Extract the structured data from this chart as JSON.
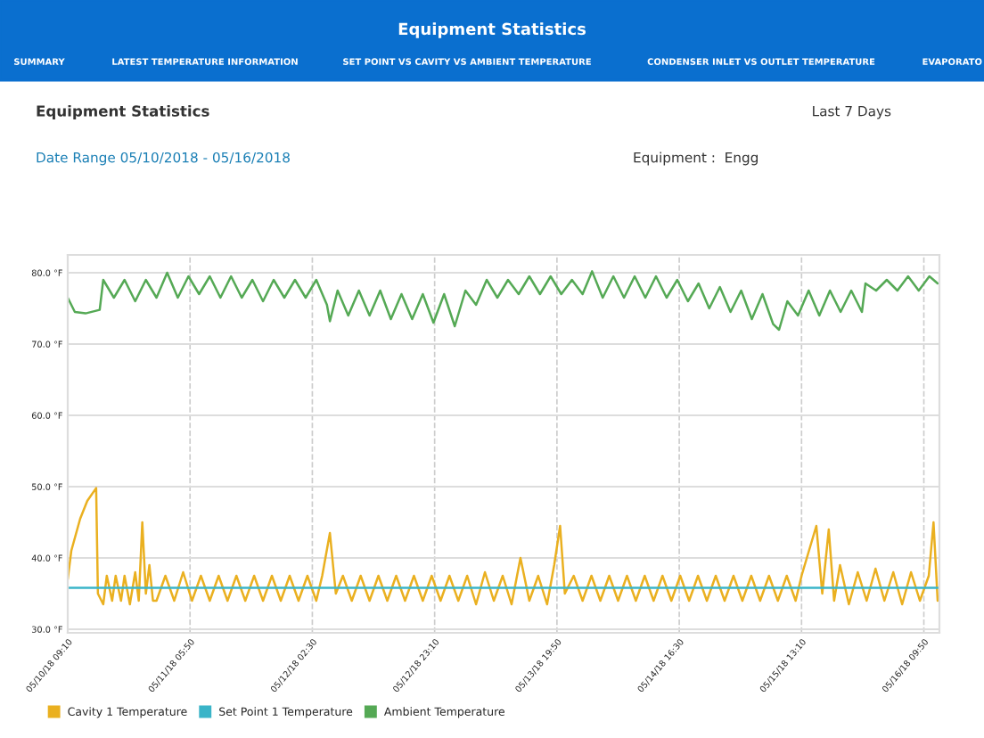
{
  "chart_data": {
    "type": "line",
    "title": "Equipment Statistics",
    "subtitle": "Date Range 05/10/2018 - 05/16/2018",
    "annotations": [
      "SUMMARY",
      "LATEST TEMPERATURE INFORMATION",
      "SET POINT VS CAVITY VS AMBIENT TEMPERATURE",
      "CONDENSER INLET VS OUTLET TEMPERATURE",
      "EVAPORATO",
      "Equipment Statistics",
      "Last 7 Days",
      "Equipment :  Engg"
    ],
    "xlim": [
      "2018-05-10T09:10",
      "2018-05-16T12:28"
    ],
    "ylim": [
      29.5,
      82.5
    ],
    "xticks": [
      {
        "value": "2018-05-10T09:10",
        "label": "05/10/18 09:10"
      },
      {
        "value": "2018-05-11T05:50",
        "label": "05/11/18 05:50"
      },
      {
        "value": "2018-05-12T02:30",
        "label": "05/12/18 02:30"
      },
      {
        "value": "2018-05-12T23:10",
        "label": "05/12/18 23:10"
      },
      {
        "value": "2018-05-13T19:50",
        "label": "05/13/18 19:50"
      },
      {
        "value": "2018-05-14T16:30",
        "label": "05/14/18 16:30"
      },
      {
        "value": "2018-05-15T13:10",
        "label": "05/15/18 13:10"
      },
      {
        "value": "2018-05-16T09:50",
        "label": "05/16/18 09:50"
      }
    ],
    "yticks": [
      {
        "value": 30,
        "label": "30.0 °F"
      },
      {
        "value": 40,
        "label": "40.0 °F"
      },
      {
        "value": 50,
        "label": "50.0 °F"
      },
      {
        "value": 60,
        "label": "60.0 °F"
      },
      {
        "value": 70,
        "label": "70.0 °F"
      },
      {
        "value": 80,
        "label": "80.0 °F"
      }
    ],
    "grid": true,
    "legend": "bottom left",
    "marker": "none",
    "series": [
      {
        "name": "Cavity 1 Temperature",
        "color": "#eab020",
        "x": [
          "2018-05-10T09:10",
          "2018-05-10T09:46",
          "2018-05-10T11:16",
          "2018-05-10T12:28",
          "2018-05-10T13:58",
          "2018-05-10T14:16",
          "2018-05-10T15:10",
          "2018-05-10T15:46",
          "2018-05-10T16:40",
          "2018-05-10T17:16",
          "2018-05-10T18:10",
          "2018-05-10T18:46",
          "2018-05-10T19:40",
          "2018-05-10T20:34",
          "2018-05-10T21:10",
          "2018-05-10T21:46",
          "2018-05-10T22:22",
          "2018-05-10T22:58",
          "2018-05-10T23:34",
          "2018-05-11T00:10",
          "2018-05-11T01:40",
          "2018-05-11T03:10",
          "2018-05-11T04:40",
          "2018-05-11T06:10",
          "2018-05-11T07:40",
          "2018-05-11T09:10",
          "2018-05-11T10:40",
          "2018-05-11T12:10",
          "2018-05-11T13:40",
          "2018-05-11T15:10",
          "2018-05-11T16:40",
          "2018-05-11T18:10",
          "2018-05-11T19:40",
          "2018-05-11T21:10",
          "2018-05-11T22:40",
          "2018-05-12T00:10",
          "2018-05-12T01:40",
          "2018-05-12T03:10",
          "2018-05-12T04:10",
          "2018-05-12T05:28",
          "2018-05-12T06:28",
          "2018-05-12T07:40",
          "2018-05-12T09:10",
          "2018-05-12T10:40",
          "2018-05-12T12:10",
          "2018-05-12T13:40",
          "2018-05-12T15:10",
          "2018-05-12T16:40",
          "2018-05-12T18:10",
          "2018-05-12T19:40",
          "2018-05-12T21:10",
          "2018-05-12T22:40",
          "2018-05-13T00:10",
          "2018-05-13T01:40",
          "2018-05-13T03:10",
          "2018-05-13T04:40",
          "2018-05-13T06:10",
          "2018-05-13T07:40",
          "2018-05-13T09:10",
          "2018-05-13T10:40",
          "2018-05-13T12:10",
          "2018-05-13T13:40",
          "2018-05-13T15:10",
          "2018-05-13T16:40",
          "2018-05-13T18:10",
          "2018-05-13T19:22",
          "2018-05-13T20:22",
          "2018-05-13T21:10",
          "2018-05-13T22:40",
          "2018-05-14T00:10",
          "2018-05-14T01:40",
          "2018-05-14T03:10",
          "2018-05-14T04:40",
          "2018-05-14T06:10",
          "2018-05-14T07:40",
          "2018-05-14T09:10",
          "2018-05-14T10:40",
          "2018-05-14T12:10",
          "2018-05-14T13:40",
          "2018-05-14T15:10",
          "2018-05-14T16:40",
          "2018-05-14T18:10",
          "2018-05-14T19:40",
          "2018-05-14T21:10",
          "2018-05-14T22:40",
          "2018-05-15T00:10",
          "2018-05-15T01:40",
          "2018-05-15T03:10",
          "2018-05-15T04:40",
          "2018-05-15T06:10",
          "2018-05-15T07:40",
          "2018-05-15T09:10",
          "2018-05-15T10:40",
          "2018-05-15T12:10",
          "2018-05-15T13:10",
          "2018-05-15T15:40",
          "2018-05-15T16:40",
          "2018-05-15T17:46",
          "2018-05-15T18:40",
          "2018-05-15T19:40",
          "2018-05-15T21:10",
          "2018-05-15T22:40",
          "2018-05-16T00:10",
          "2018-05-16T01:40",
          "2018-05-16T03:10",
          "2018-05-16T04:40",
          "2018-05-16T06:10",
          "2018-05-16T07:40",
          "2018-05-16T09:10",
          "2018-05-16T10:40",
          "2018-05-16T11:28",
          "2018-05-16T12:10"
        ],
        "values": [
          37,
          41,
          45.5,
          48,
          49.8,
          35,
          33.5,
          37.5,
          34,
          37.5,
          34,
          37.5,
          33.5,
          38,
          34,
          45,
          35,
          39,
          34,
          34,
          37.5,
          34,
          38,
          34,
          37.5,
          34,
          37.5,
          34,
          37.5,
          34,
          37.5,
          34,
          37.5,
          34,
          37.5,
          34,
          37.5,
          34,
          37.5,
          43.5,
          35,
          37.5,
          34,
          37.5,
          34,
          37.5,
          34,
          37.5,
          34,
          37.5,
          34,
          37.5,
          34,
          37.5,
          34,
          37.5,
          33.5,
          38,
          34,
          37.5,
          33.5,
          40,
          34,
          37.5,
          33.5,
          39,
          44.5,
          35,
          37.5,
          34,
          37.5,
          34,
          37.5,
          34,
          37.5,
          34,
          37.5,
          34,
          37.5,
          34,
          37.5,
          34,
          37.5,
          34,
          37.5,
          34,
          37.5,
          34,
          37.5,
          34,
          37.5,
          34,
          37.5,
          34,
          37.5,
          44.5,
          35,
          44,
          34,
          39,
          33.5,
          38,
          34,
          38.5,
          34,
          38,
          33.5,
          38,
          34,
          37.5,
          45,
          34
        ]
      },
      {
        "name": "Set Point 1 Temperature",
        "color": "#3ab4c8",
        "x": [
          "2018-05-10T09:10",
          "2018-05-16T12:10"
        ],
        "values": [
          35.8,
          35.8
        ]
      },
      {
        "name": "Ambient Temperature",
        "color": "#55a955",
        "x": [
          "2018-05-10T09:10",
          "2018-05-10T10:22",
          "2018-05-10T12:10",
          "2018-05-10T14:34",
          "2018-05-10T15:10",
          "2018-05-10T16:58",
          "2018-05-10T18:46",
          "2018-05-10T20:34",
          "2018-05-10T22:22",
          "2018-05-11T00:10",
          "2018-05-11T01:58",
          "2018-05-11T03:46",
          "2018-05-11T05:34",
          "2018-05-11T07:22",
          "2018-05-11T09:10",
          "2018-05-11T10:58",
          "2018-05-11T12:46",
          "2018-05-11T14:34",
          "2018-05-11T16:22",
          "2018-05-11T18:10",
          "2018-05-11T19:58",
          "2018-05-11T21:46",
          "2018-05-11T23:34",
          "2018-05-12T01:22",
          "2018-05-12T03:10",
          "2018-05-12T04:58",
          "2018-05-12T05:28",
          "2018-05-12T06:46",
          "2018-05-12T08:34",
          "2018-05-12T10:22",
          "2018-05-12T12:10",
          "2018-05-12T13:58",
          "2018-05-12T15:46",
          "2018-05-12T17:34",
          "2018-05-12T19:22",
          "2018-05-12T21:10",
          "2018-05-12T22:58",
          "2018-05-13T00:46",
          "2018-05-13T02:34",
          "2018-05-13T04:22",
          "2018-05-13T06:10",
          "2018-05-13T07:58",
          "2018-05-13T09:46",
          "2018-05-13T11:34",
          "2018-05-13T13:22",
          "2018-05-13T15:10",
          "2018-05-13T16:58",
          "2018-05-13T18:46",
          "2018-05-13T20:34",
          "2018-05-13T22:22",
          "2018-05-14T00:10",
          "2018-05-14T01:46",
          "2018-05-14T03:34",
          "2018-05-14T05:22",
          "2018-05-14T07:10",
          "2018-05-14T08:58",
          "2018-05-14T10:46",
          "2018-05-14T12:34",
          "2018-05-14T14:22",
          "2018-05-14T16:10",
          "2018-05-14T17:58",
          "2018-05-14T19:46",
          "2018-05-14T21:34",
          "2018-05-14T23:22",
          "2018-05-15T01:10",
          "2018-05-15T02:58",
          "2018-05-15T04:46",
          "2018-05-15T06:34",
          "2018-05-15T08:22",
          "2018-05-15T09:22",
          "2018-05-15T10:46",
          "2018-05-15T12:34",
          "2018-05-15T14:22",
          "2018-05-15T16:10",
          "2018-05-15T17:58",
          "2018-05-15T19:46",
          "2018-05-15T21:34",
          "2018-05-15T23:22",
          "2018-05-15T23:58",
          "2018-05-16T01:46",
          "2018-05-16T03:34",
          "2018-05-16T05:22",
          "2018-05-16T07:10",
          "2018-05-16T08:58",
          "2018-05-16T10:46",
          "2018-05-16T12:10"
        ],
        "values": [
          76.5,
          74.5,
          74.3,
          74.8,
          79,
          76.5,
          79,
          76,
          79,
          76.5,
          80,
          76.5,
          79.5,
          77,
          79.5,
          76.5,
          79.5,
          76.5,
          79,
          76,
          79,
          76.5,
          79,
          76.5,
          79,
          75.5,
          73.2,
          77.5,
          74,
          77.5,
          74,
          77.5,
          73.5,
          77,
          73.5,
          77,
          73,
          77,
          72.5,
          77.5,
          75.5,
          79,
          76.5,
          79,
          77,
          79.5,
          77,
          79.5,
          77,
          79,
          77,
          80.2,
          76.5,
          79.5,
          76.5,
          79.5,
          76.5,
          79.5,
          76.5,
          79,
          76,
          78.5,
          75,
          78,
          74.5,
          77.5,
          73.5,
          77,
          72.8,
          72,
          76,
          74,
          77.5,
          74,
          77.5,
          74.5,
          77.5,
          74.5,
          78.5,
          77.5,
          79,
          77.5,
          79.5,
          77.5,
          79.5,
          78.5
        ]
      }
    ]
  }
}
